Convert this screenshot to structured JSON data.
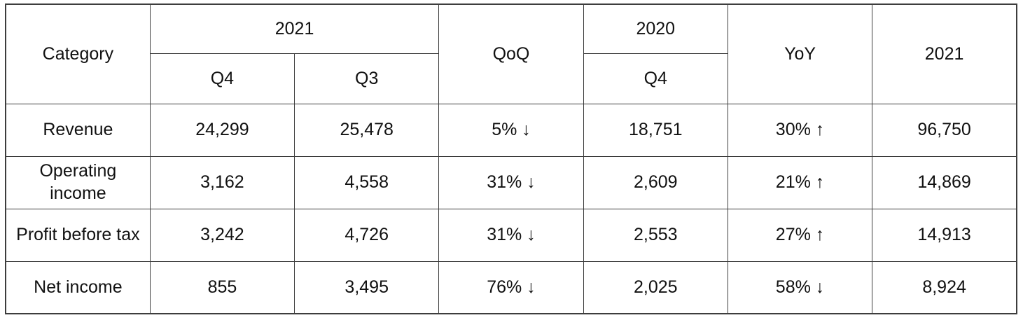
{
  "page": {
    "background_color": "#ffffff",
    "border_color": "#3d3d3d",
    "text_color": "#111111"
  },
  "table": {
    "header": {
      "category": "Category",
      "year_2021_group": "2021",
      "q4_2021": "Q4",
      "q3_2021": "Q3",
      "qoq": "QoQ",
      "year_2020_group": "2020",
      "q4_2020": "Q4",
      "yoy": "YoY",
      "fy_2021": "2021"
    },
    "rows": [
      {
        "label": "Revenue",
        "q4_2021": "24,299",
        "q3_2021": "25,478",
        "qoq": "5% ↓",
        "q4_2020": "18,751",
        "yoy": "30% ↑",
        "fy_2021": "96,750"
      },
      {
        "label": "Operating\nincome",
        "q4_2021": "3,162",
        "q3_2021": "4,558",
        "qoq": "31% ↓",
        "q4_2020": "2,609",
        "yoy": "21% ↑",
        "fy_2021": "14,869"
      },
      {
        "label": "Profit before tax",
        "q4_2021": "3,242",
        "q3_2021": "4,726",
        "qoq": "31% ↓",
        "q4_2020": "2,553",
        "yoy": "27% ↑",
        "fy_2021": "14,913"
      },
      {
        "label": "Net income",
        "q4_2021": "855",
        "q3_2021": "3,495",
        "qoq": "76% ↓",
        "q4_2020": "2,025",
        "yoy": "58% ↓",
        "fy_2021": "8,924"
      }
    ]
  }
}
